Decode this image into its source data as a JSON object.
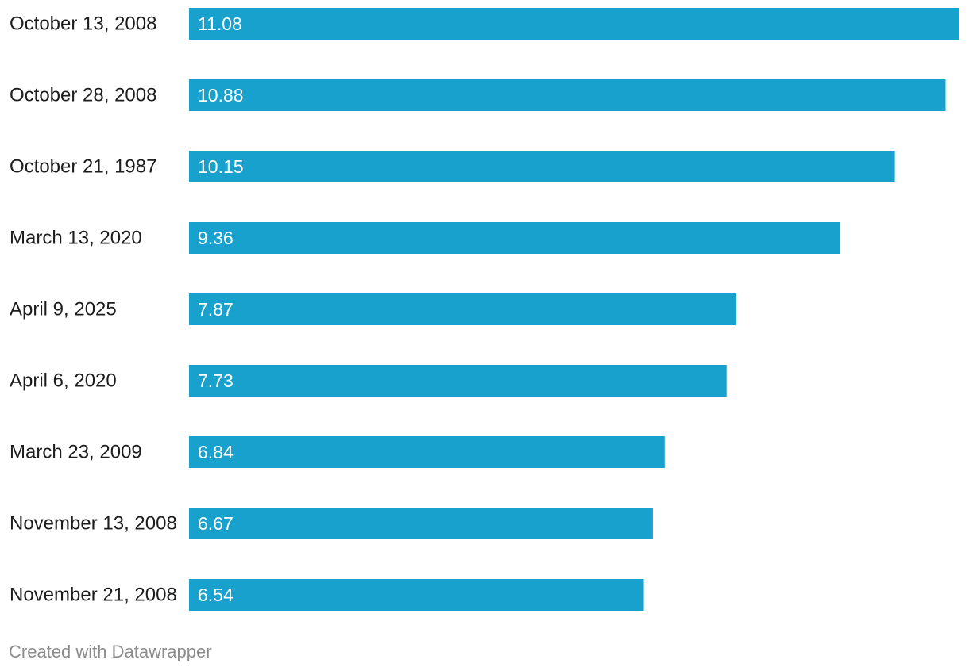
{
  "chart_data": {
    "type": "bar",
    "orientation": "horizontal",
    "categories": [
      "October 13, 2008",
      "October 28, 2008",
      "October 21, 1987",
      "March 13, 2020",
      "April 9, 2025",
      "April 6, 2020",
      "March 23, 2009",
      "November 13, 2008",
      "November 21, 2008"
    ],
    "values": [
      11.08,
      10.88,
      10.15,
      9.36,
      7.87,
      7.73,
      6.84,
      6.67,
      6.54
    ],
    "value_labels": [
      "11.08",
      "10.88",
      "10.15",
      "9.36",
      "7.87",
      "7.73",
      "6.84",
      "6.67",
      "6.54"
    ],
    "xlim": [
      0,
      11.08
    ],
    "grid": false,
    "legend": "none",
    "bar_color": "#18a1cd",
    "label_color": "#ffffff",
    "category_label_color": "#1d1d1d"
  },
  "footer": {
    "credit": "Created with Datawrapper"
  }
}
